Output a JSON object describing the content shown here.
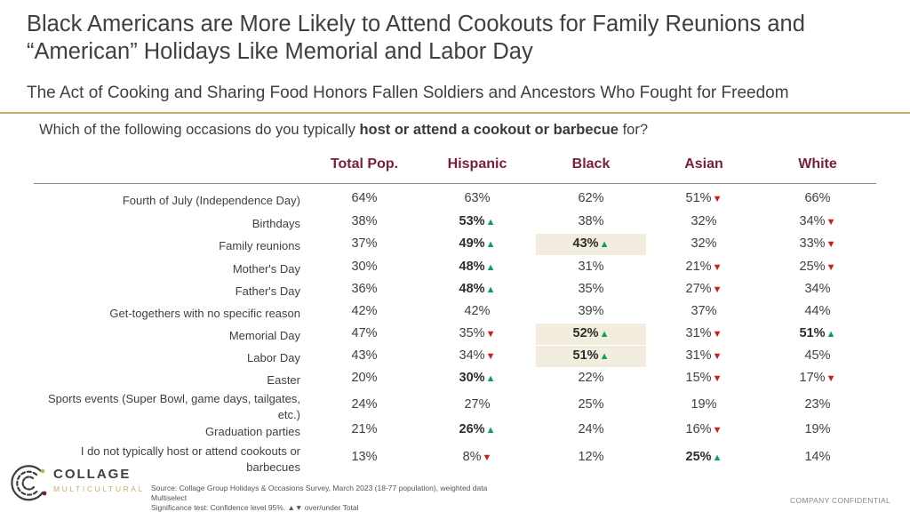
{
  "header": {
    "title": "Black Americans are More Likely to Attend Cookouts for Family Reunions and “American” Holidays Like Memorial and Labor Day",
    "subtitle": "The Act of Cooking and Sharing Food Honors Fallen Soldiers and Ancestors Who Fought for Freedom",
    "question_pre": "Which of the following occasions do you typically ",
    "question_bold": "host or attend a cookout or barbecue",
    "question_post": " for?"
  },
  "chart_data": {
    "type": "table",
    "columns": [
      "Total Pop.",
      "Hispanic",
      "Black",
      "Asian",
      "White"
    ],
    "rows": [
      {
        "label": "Fourth of July (Independence Day)",
        "values": [
          "64%",
          "63%",
          "62%",
          "51%",
          "66%"
        ],
        "sig": [
          "",
          "",
          "",
          "down",
          ""
        ],
        "bold": [
          false,
          false,
          false,
          false,
          false
        ]
      },
      {
        "label": "Birthdays",
        "values": [
          "38%",
          "53%",
          "38%",
          "32%",
          "34%"
        ],
        "sig": [
          "",
          "up",
          "",
          "",
          "down"
        ],
        "bold": [
          false,
          true,
          false,
          false,
          false
        ]
      },
      {
        "label": "Family reunions",
        "values": [
          "37%",
          "49%",
          "43%",
          "32%",
          "33%"
        ],
        "sig": [
          "",
          "up",
          "up",
          "",
          "down"
        ],
        "bold": [
          false,
          true,
          true,
          false,
          false
        ]
      },
      {
        "label": "Mother's Day",
        "values": [
          "30%",
          "48%",
          "31%",
          "21%",
          "25%"
        ],
        "sig": [
          "",
          "up",
          "",
          "down",
          "down"
        ],
        "bold": [
          false,
          true,
          false,
          false,
          false
        ]
      },
      {
        "label": "Father's Day",
        "values": [
          "36%",
          "48%",
          "35%",
          "27%",
          "34%"
        ],
        "sig": [
          "",
          "up",
          "",
          "down",
          ""
        ],
        "bold": [
          false,
          true,
          false,
          false,
          false
        ]
      },
      {
        "label": "Get-togethers with no specific reason",
        "values": [
          "42%",
          "42%",
          "39%",
          "37%",
          "44%"
        ],
        "sig": [
          "",
          "",
          "",
          "",
          ""
        ],
        "bold": [
          false,
          false,
          false,
          false,
          false
        ]
      },
      {
        "label": "Memorial Day",
        "values": [
          "47%",
          "35%",
          "52%",
          "31%",
          "51%"
        ],
        "sig": [
          "",
          "down",
          "up",
          "down",
          "up"
        ],
        "bold": [
          false,
          false,
          true,
          false,
          true
        ]
      },
      {
        "label": "Labor Day",
        "values": [
          "43%",
          "34%",
          "51%",
          "31%",
          "45%"
        ],
        "sig": [
          "",
          "down",
          "up",
          "down",
          ""
        ],
        "bold": [
          false,
          false,
          true,
          false,
          false
        ]
      },
      {
        "label": "Easter",
        "values": [
          "20%",
          "30%",
          "22%",
          "15%",
          "17%"
        ],
        "sig": [
          "",
          "up",
          "",
          "down",
          "down"
        ],
        "bold": [
          false,
          true,
          false,
          false,
          false
        ]
      },
      {
        "label": "Sports events (Super Bowl, game days, tailgates, etc.)",
        "values": [
          "24%",
          "27%",
          "25%",
          "19%",
          "23%"
        ],
        "sig": [
          "",
          "",
          "",
          "",
          ""
        ],
        "bold": [
          false,
          false,
          false,
          false,
          false
        ]
      },
      {
        "label": "Graduation parties",
        "values": [
          "21%",
          "26%",
          "24%",
          "16%",
          "19%"
        ],
        "sig": [
          "",
          "up",
          "",
          "down",
          ""
        ],
        "bold": [
          false,
          true,
          false,
          false,
          false
        ]
      },
      {
        "label": "I do not typically host or attend cookouts or barbecues",
        "values": [
          "13%",
          "8%",
          "12%",
          "25%",
          "14%"
        ],
        "sig": [
          "",
          "down",
          "",
          "up",
          ""
        ],
        "bold": [
          false,
          false,
          false,
          true,
          false
        ]
      }
    ],
    "highlighted_cells": [
      {
        "row": 2,
        "col": 2
      },
      {
        "row": 6,
        "col": 2
      },
      {
        "row": 7,
        "col": 2
      }
    ],
    "colors": {
      "header": "#7b1e3a",
      "up": "#0f9d58",
      "down": "#c81e1e",
      "highlight": "#f3ede0",
      "rule": "#c9ad6c"
    }
  },
  "footer": {
    "logo_line1": "COLLAGE",
    "logo_line2": "MULTICULTURAL",
    "source": "Source: Collage Group Holidays & Occasions Survey, March 2023 (18-77 population), weighted data",
    "multiselect": "Multiselect",
    "significance": "Significance test: Confidence level 95%. ▲▼ over/under Total",
    "confidential": "COMPANY CONFIDENTIAL",
    "logo_icon": "collage-circle-logo"
  }
}
